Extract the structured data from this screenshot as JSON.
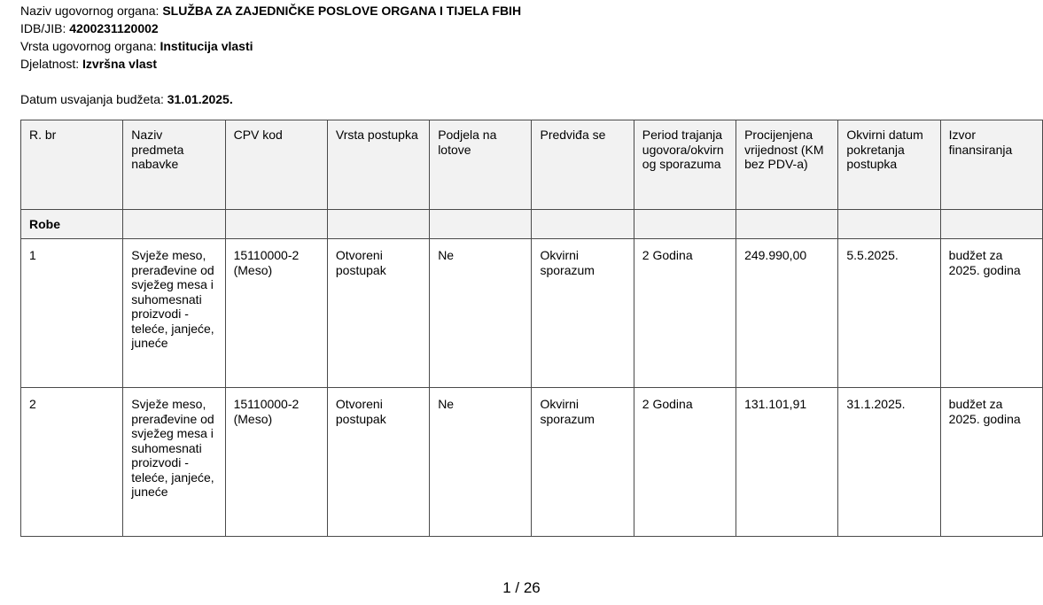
{
  "header": {
    "organ_label": "Naziv ugovornog organa:",
    "organ_value": "SLUŽBA ZA ZAJEDNIČKE POSLOVE ORGANA I TIJELA FBIH",
    "idb_label": "IDB/JIB:",
    "idb_value": "4200231120002",
    "type_label": "Vrsta ugovornog organa:",
    "type_value": "Institucija vlasti",
    "activity_label": "Djelatnost:",
    "activity_value": "Izvršna vlast",
    "budget_date_label": "Datum usvajanja budžeta:",
    "budget_date_value": "31.01.2025."
  },
  "table": {
    "columns": [
      "R. br",
      "Naziv predmeta nabavke",
      "CPV kod",
      "Vrsta postupka",
      "Podjela na lotove",
      "Predviđa se",
      "Period trajanja ugovora/okvirnog sporazuma",
      "Procijenjena vrijednost (KM bez PDV-a)",
      "Okvirni datum pokretanja postupka",
      "Izvor finansiranja"
    ],
    "section": "Robe",
    "rows": [
      [
        "1",
        "Svježe meso, prerađevine od svježeg mesa i suhomesnati proizvodi - teleće, janjeće, juneće",
        "15110000-2 (Meso)",
        "Otvoreni postupak",
        "Ne",
        "Okvirni sporazum",
        "2 Godina",
        "249.990,00",
        "5.5.2025.",
        "budžet za 2025. godina"
      ],
      [
        "2",
        "Svježe meso, prerađevine od svježeg mesa i suhomesnati proizvodi - teleće, janjeće, juneće",
        "15110000-2 (Meso)",
        "Otvoreni postupak",
        "Ne",
        "Okvirni sporazum",
        "2 Godina",
        "131.101,91",
        "31.1.2025.",
        "budžet za 2025. godina"
      ]
    ]
  },
  "pager": "1 / 26"
}
